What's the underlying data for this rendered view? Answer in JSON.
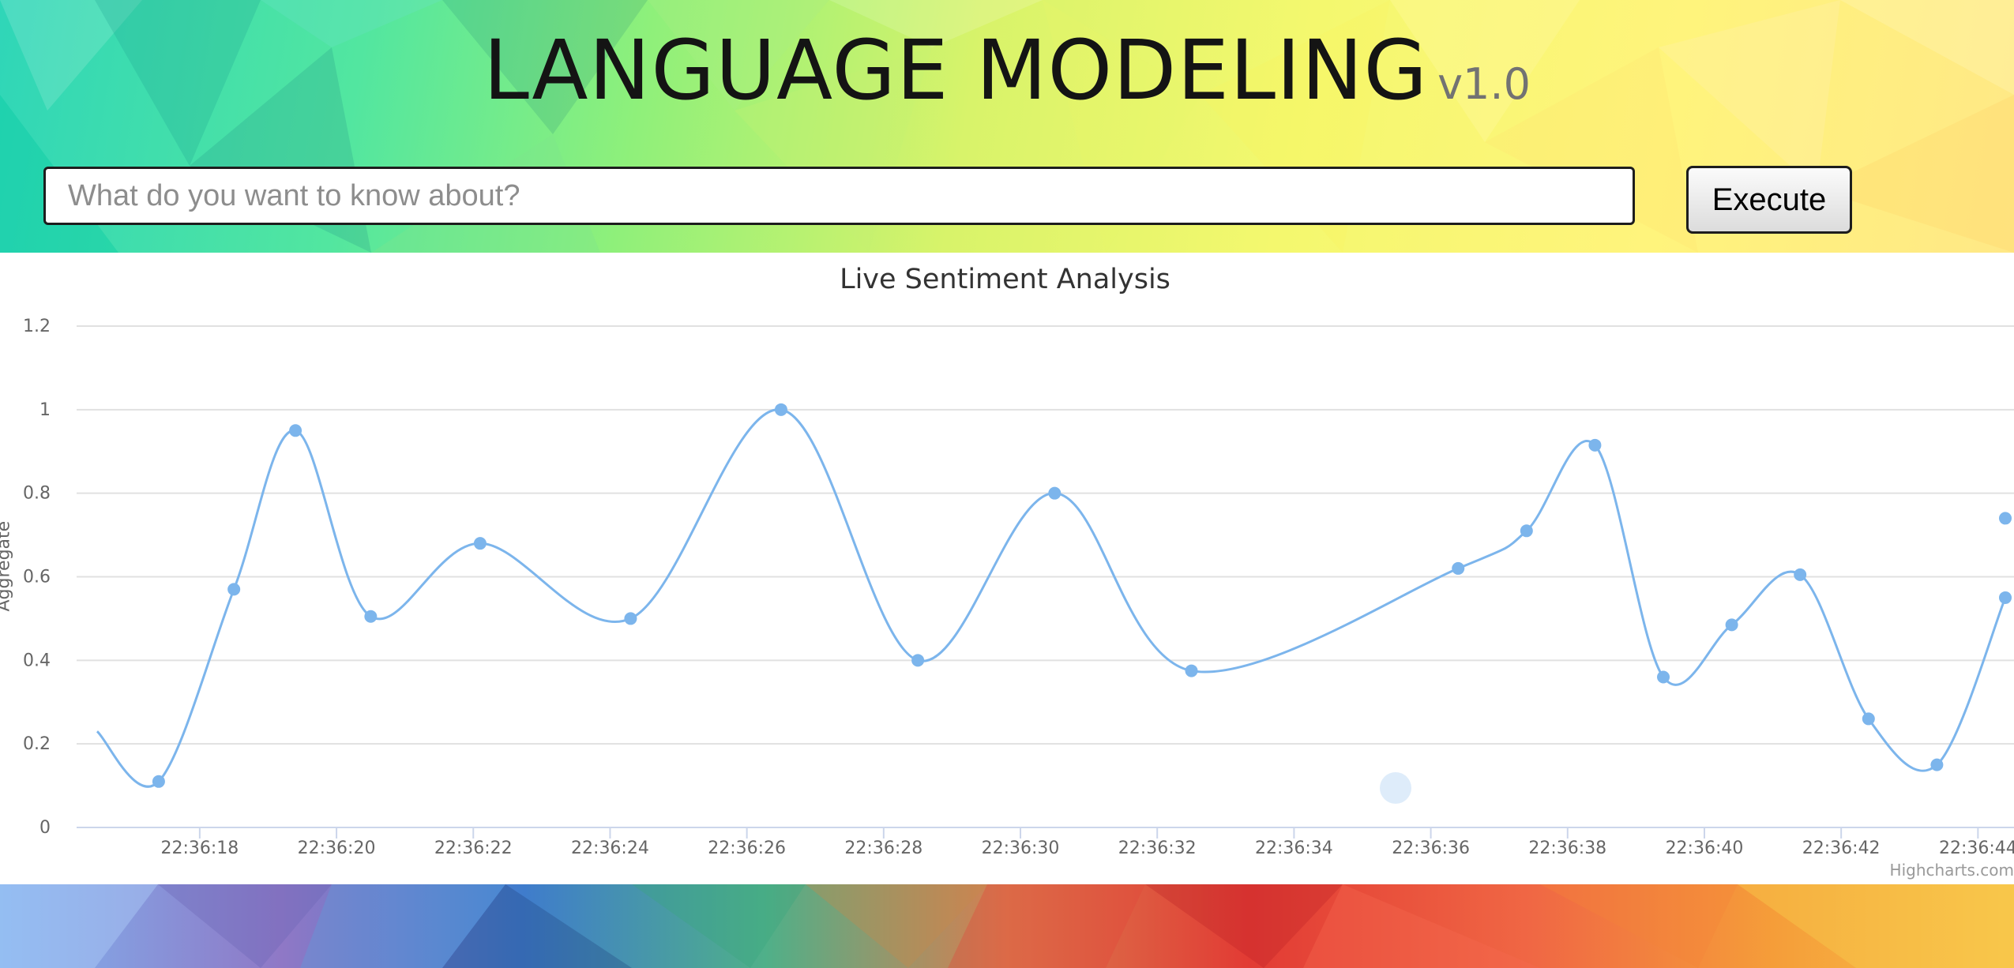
{
  "header": {
    "title": "LANGUAGE MODELING",
    "version": "v1.0"
  },
  "search": {
    "placeholder": "What do you want to know about?",
    "value": "",
    "execute_label": "Execute"
  },
  "chart_data": {
    "type": "line",
    "title": "Live Sentiment Analysis",
    "xlabel": "",
    "ylabel": "Aggregate",
    "ylim": [
      0,
      1.2
    ],
    "xlim": [
      "22:36:16.2",
      "22:36:44.4"
    ],
    "yticks": [
      "0",
      "0.2",
      "0.4",
      "0.6",
      "0.8",
      "1",
      "1.2"
    ],
    "xticks": [
      "22:36:18",
      "22:36:20",
      "22:36:22",
      "22:36:24",
      "22:36:26",
      "22:36:28",
      "22:36:30",
      "22:36:32",
      "22:36:34",
      "22:36:36",
      "22:36:38",
      "22:36:40",
      "22:36:42",
      "22:36:44"
    ],
    "grid": true,
    "smooth": true,
    "color": "#7cb5ec",
    "series": [
      {
        "x": [
          "22:36:16.5",
          "22:36:17.4",
          "22:36:18.5",
          "22:36:19.4",
          "22:36:20.5",
          "22:36:22.1",
          "22:36:24.3",
          "22:36:26.5",
          "22:36:28.5",
          "22:36:30.5",
          "22:36:32.5",
          "22:36:36.4",
          "22:36:37.4",
          "22:36:38.4",
          "22:36:39.4",
          "22:36:40.4",
          "22:36:41.4",
          "22:36:42.4",
          "22:36:43.4",
          "22:36:44.4",
          "22:36:44.4"
        ],
        "y": [
          0.23,
          0.11,
          0.57,
          0.95,
          0.505,
          0.68,
          0.5,
          1.0,
          0.4,
          0.8,
          0.375,
          0.62,
          0.71,
          0.915,
          0.36,
          0.485,
          0.605,
          0.26,
          0.15,
          0.55,
          0.74
        ],
        "markers": [
          false,
          true,
          true,
          true,
          true,
          true,
          true,
          true,
          true,
          true,
          true,
          true,
          true,
          true,
          true,
          true,
          true,
          true,
          true,
          true,
          true
        ]
      }
    ]
  },
  "credits": "Highcharts.com"
}
